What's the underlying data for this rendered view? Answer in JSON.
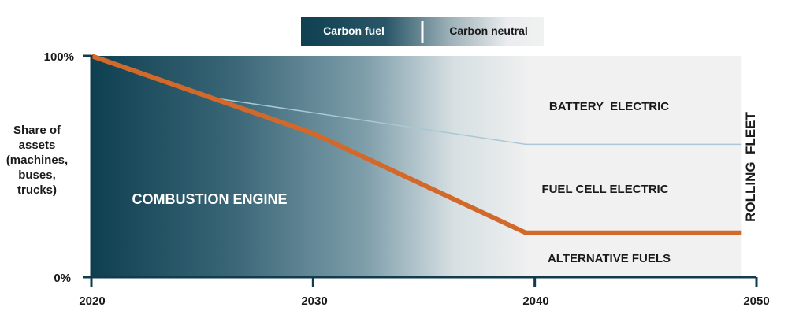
{
  "chart_data": {
    "type": "area",
    "x": [
      2020,
      2030,
      2040,
      2050
    ],
    "xlim": [
      2020,
      2050
    ],
    "ylim": [
      0,
      100
    ],
    "x_ticks": [
      "2020",
      "2030",
      "2040",
      "2050"
    ],
    "y_ticks": [
      "0%",
      "100%"
    ],
    "ylabel": "Share of assets (machines, buses, trucks)",
    "legend": {
      "placement": "top-center",
      "items": [
        "Carbon fuel",
        "Carbon neutral"
      ],
      "colors": [
        "#0e4051",
        "#f1f1f1"
      ]
    },
    "series": [
      {
        "name": "COMBUSTION ENGINE",
        "points": [
          [
            2020,
            100
          ],
          [
            2030,
            65
          ],
          [
            2039.6,
            20
          ],
          [
            2049.3,
            20
          ]
        ],
        "color": "#d2692a"
      },
      {
        "name": "BATTERY ELECTRIC / FUEL CELL ELECTRIC boundary",
        "points": [
          [
            2020,
            100
          ],
          [
            2025.5,
            81
          ],
          [
            2039.6,
            60
          ],
          [
            2049.3,
            60
          ]
        ],
        "color": "#a9c8d3"
      }
    ],
    "region_labels": [
      "COMBUSTION ENGINE",
      "BATTERY  ELECTRIC",
      "FUEL CELL ELECTRIC",
      "ALTERNATIVE FUELS"
    ],
    "side_label": "ROLLING  FLEET",
    "colors": {
      "dark": "#0e4051",
      "light": "#f1f1f1",
      "accent_line": "#d2692a",
      "axis": "#123c4d"
    }
  }
}
